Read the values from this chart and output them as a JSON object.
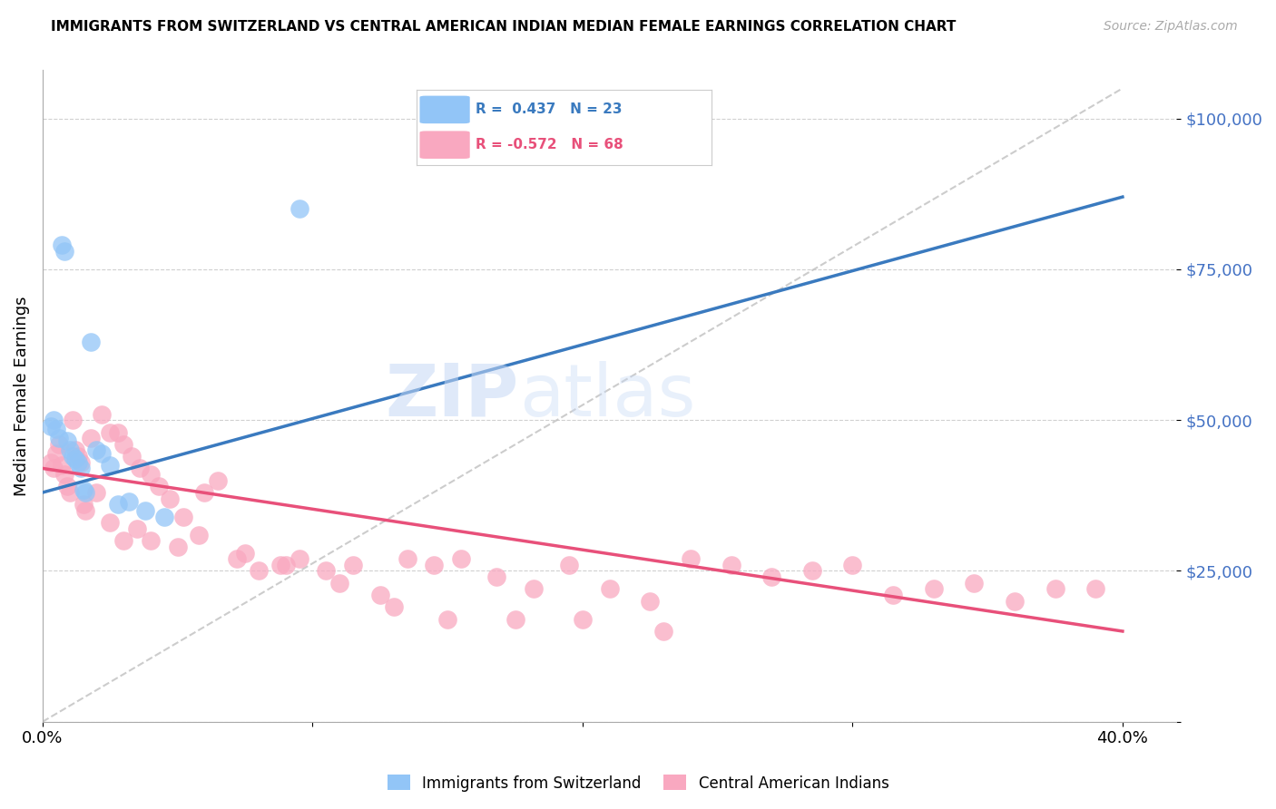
{
  "title": "IMMIGRANTS FROM SWITZERLAND VS CENTRAL AMERICAN INDIAN MEDIAN FEMALE EARNINGS CORRELATION CHART",
  "source": "Source: ZipAtlas.com",
  "ylabel": "Median Female Earnings",
  "xlim": [
    0.0,
    0.42
  ],
  "ylim": [
    0,
    108000
  ],
  "yticks": [
    0,
    25000,
    50000,
    75000,
    100000
  ],
  "ytick_labels": [
    "",
    "$25,000",
    "$50,000",
    "$75,000",
    "$100,000"
  ],
  "xtick_positions": [
    0.0,
    0.1,
    0.2,
    0.3,
    0.4
  ],
  "xtick_labels": [
    "0.0%",
    "",
    "",
    "",
    "40.0%"
  ],
  "blue_color": "#92c5f7",
  "pink_color": "#f9a8c0",
  "blue_line_color": "#3a7abf",
  "pink_line_color": "#e8507a",
  "dashed_line_color": "#c0c0c0",
  "yaxis_label_color": "#4472c4",
  "watermark_zip_color": "#c5d8f5",
  "watermark_atlas_color": "#c5d8f5",
  "blue_r": "0.437",
  "blue_n": "23",
  "pink_r": "-0.572",
  "pink_n": "68",
  "blue_legend_label": "Immigrants from Switzerland",
  "pink_legend_label": "Central American Indians",
  "blue_x": [
    0.003,
    0.004,
    0.005,
    0.006,
    0.007,
    0.008,
    0.009,
    0.01,
    0.011,
    0.012,
    0.013,
    0.014,
    0.015,
    0.016,
    0.018,
    0.02,
    0.022,
    0.025,
    0.028,
    0.032,
    0.038,
    0.045,
    0.095
  ],
  "blue_y": [
    49000,
    50000,
    48500,
    47000,
    79000,
    78000,
    46500,
    45000,
    44000,
    43500,
    43000,
    42000,
    38500,
    38000,
    63000,
    45000,
    44500,
    42500,
    36000,
    36500,
    35000,
    34000,
    85000
  ],
  "pink_x": [
    0.003,
    0.004,
    0.005,
    0.006,
    0.007,
    0.008,
    0.009,
    0.01,
    0.011,
    0.012,
    0.013,
    0.014,
    0.015,
    0.016,
    0.018,
    0.02,
    0.022,
    0.025,
    0.028,
    0.03,
    0.033,
    0.036,
    0.04,
    0.043,
    0.047,
    0.052,
    0.058,
    0.065,
    0.072,
    0.08,
    0.088,
    0.095,
    0.105,
    0.115,
    0.125,
    0.135,
    0.145,
    0.155,
    0.168,
    0.182,
    0.195,
    0.21,
    0.225,
    0.24,
    0.255,
    0.27,
    0.285,
    0.3,
    0.315,
    0.33,
    0.345,
    0.36,
    0.375,
    0.39,
    0.025,
    0.03,
    0.035,
    0.04,
    0.05,
    0.06,
    0.075,
    0.09,
    0.11,
    0.13,
    0.15,
    0.175,
    0.2,
    0.23
  ],
  "pink_y": [
    43000,
    42000,
    44500,
    46000,
    42500,
    41000,
    39000,
    38000,
    50000,
    45000,
    44000,
    43000,
    36000,
    35000,
    47000,
    38000,
    51000,
    48000,
    48000,
    46000,
    44000,
    42000,
    41000,
    39000,
    37000,
    34000,
    31000,
    40000,
    27000,
    25000,
    26000,
    27000,
    25000,
    26000,
    21000,
    27000,
    26000,
    27000,
    24000,
    22000,
    26000,
    22000,
    20000,
    27000,
    26000,
    24000,
    25000,
    26000,
    21000,
    22000,
    23000,
    20000,
    22000,
    22000,
    33000,
    30000,
    32000,
    30000,
    29000,
    38000,
    28000,
    26000,
    23000,
    19000,
    17000,
    17000,
    17000,
    15000
  ],
  "blue_line_x0": 0.0,
  "blue_line_x1": 0.4,
  "blue_line_y0": 38000,
  "blue_line_y1": 87000,
  "pink_line_x0": 0.0,
  "pink_line_x1": 0.4,
  "pink_line_y0": 42000,
  "pink_line_y1": 15000,
  "dash_line_x0": 0.0,
  "dash_line_x1": 0.4,
  "dash_line_y0": 0,
  "dash_line_y1": 105000
}
